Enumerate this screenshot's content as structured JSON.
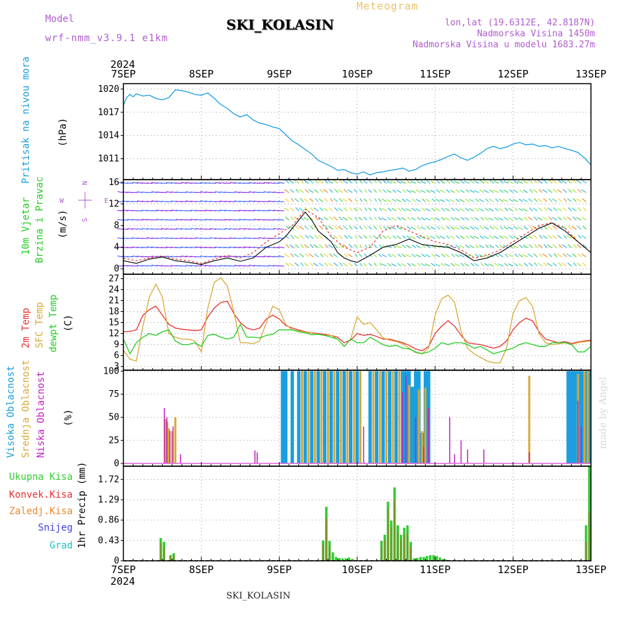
{
  "header": {
    "model_label": "Model",
    "model_name": "wrf-nmm_v3.9.1 e1km",
    "title": "SKI_KOLASIN",
    "meteogram_label": "Meteogram",
    "lonlat": "lon,lat (19.6312E, 42.8187N)",
    "altitude": "Nadmorska Visina 1450m",
    "model_altitude": "Nadmorska Visina u modelu 1683.27m",
    "year_top": "2024",
    "year_bottom": "2024",
    "station_footer": "SKI_KOLASIN",
    "made_by": "made by Angel"
  },
  "colors": {
    "pressure": "#1a9ee0",
    "wind": "#22cc22",
    "t2m": "#e83030",
    "sfc": "#d8a838",
    "dewpt": "#22cc22",
    "high_cloud": "#1a9ee0",
    "mid_cloud": "#d8a838",
    "low_cloud": "#c020c0",
    "total_precip": "#33cc33",
    "conv_precip": "#e83030",
    "frozen_precip": "#e88830",
    "snow": "#4040e0",
    "hail": "#20c0c0",
    "grid": "#999999"
  },
  "chart_data": [
    {
      "type": "line",
      "panel": "pressure",
      "ylabel": "Pritisak na nivou mora",
      "unit": "(hPa)",
      "x_ticks": [
        "7SEP",
        "8SEP",
        "9SEP",
        "10SEP",
        "11SEP",
        "12SEP",
        "13SEP"
      ],
      "y_ticks": [
        1011,
        1014,
        1017,
        1020
      ],
      "ylim": [
        1008.3,
        1020.7
      ],
      "xlim": [
        0,
        144
      ],
      "x": [
        0,
        1,
        2,
        3,
        4,
        6,
        8,
        10,
        12,
        14,
        16,
        18,
        20,
        22,
        24,
        26,
        28,
        30,
        32,
        34,
        36,
        38,
        40,
        42,
        44,
        46,
        48,
        50,
        52,
        54,
        56,
        58,
        60,
        62,
        64,
        66,
        68,
        70,
        72,
        74,
        76,
        78,
        80,
        82,
        84,
        86,
        88,
        90,
        92,
        94,
        96,
        98,
        100,
        102,
        104,
        106,
        108,
        110,
        112,
        114,
        116,
        118,
        120,
        122,
        124,
        126,
        128,
        130,
        132,
        134,
        136,
        138,
        140,
        142,
        144
      ],
      "y": [
        1017.9,
        1018.9,
        1019.3,
        1019.0,
        1019.4,
        1019.1,
        1019.2,
        1018.8,
        1018.6,
        1018.9,
        1019.9,
        1019.8,
        1019.6,
        1019.3,
        1019.2,
        1019.5,
        1018.8,
        1018.0,
        1017.5,
        1016.8,
        1016.4,
        1016.7,
        1016.0,
        1015.6,
        1015.4,
        1015.1,
        1014.9,
        1014.1,
        1013.3,
        1012.8,
        1012.2,
        1011.6,
        1010.8,
        1010.4,
        1010.0,
        1009.5,
        1009.6,
        1009.2,
        1009.0,
        1009.3,
        1008.9,
        1009.2,
        1009.3,
        1009.5,
        1009.6,
        1009.8,
        1009.4,
        1009.6,
        1010.1,
        1010.4,
        1010.6,
        1010.9,
        1011.3,
        1011.6,
        1011.1,
        1010.8,
        1011.2,
        1011.7,
        1012.3,
        1012.6,
        1012.3,
        1012.5,
        1012.9,
        1013.1,
        1012.8,
        1012.9,
        1012.6,
        1012.7,
        1012.4,
        1012.6,
        1012.3,
        1012.1,
        1011.8,
        1011.1,
        1010.2
      ]
    },
    {
      "type": "line",
      "panel": "wind",
      "ylabel": "10m Vjetar Brzina i Pravac",
      "unit": "(m/s)",
      "compass": [
        "N",
        "E",
        "S",
        "W"
      ],
      "y_ticks": [
        0,
        4,
        8,
        12,
        16
      ],
      "ylim": [
        -1,
        16.5
      ],
      "xlim": [
        0,
        144
      ],
      "series": [
        {
          "name": "speed",
          "x": [
            0,
            4,
            8,
            12,
            16,
            20,
            24,
            28,
            32,
            36,
            40,
            44,
            48,
            50,
            52,
            54,
            56,
            58,
            60,
            62,
            64,
            66,
            68,
            70,
            72,
            76,
            80,
            84,
            88,
            90,
            92,
            96,
            100,
            104,
            108,
            112,
            116,
            120,
            124,
            128,
            132,
            136,
            140,
            144
          ],
          "y": [
            1.5,
            1.0,
            1.8,
            2.2,
            1.5,
            1.2,
            0.8,
            1.5,
            2.0,
            1.4,
            2.0,
            4.0,
            5.0,
            6.0,
            7.5,
            9.0,
            10.5,
            9.0,
            7.0,
            6.0,
            5.0,
            3.0,
            2.0,
            1.5,
            1.2,
            2.5,
            4.0,
            4.5,
            5.5,
            5.0,
            4.5,
            4.2,
            4.0,
            3.0,
            1.5,
            2.0,
            3.0,
            4.5,
            6.0,
            7.5,
            8.5,
            7.0,
            5.0,
            3.0
          ]
        },
        {
          "name": "gust",
          "x": [
            0,
            4,
            8,
            12,
            16,
            20,
            24,
            28,
            32,
            36,
            40,
            44,
            48,
            52,
            56,
            60,
            64,
            68,
            72,
            76,
            80,
            84,
            88,
            92,
            96,
            100,
            104,
            108,
            112,
            116,
            120,
            124,
            128,
            132,
            136,
            140,
            144
          ],
          "y": [
            2.0,
            1.5,
            2.0,
            2.4,
            1.8,
            1.5,
            1.0,
            1.8,
            2.5,
            2.0,
            3.0,
            5.0,
            6.5,
            8.0,
            11.0,
            9.5,
            6.0,
            4.0,
            3.0,
            4.0,
            7.0,
            8.0,
            7.0,
            6.0,
            5.0,
            4.5,
            3.5,
            2.0,
            2.5,
            3.5,
            5.0,
            6.5,
            8.0,
            8.5,
            7.5,
            5.0,
            3.0
          ]
        }
      ]
    },
    {
      "type": "line",
      "panel": "temperature",
      "ylabels": [
        "2m Temp",
        "SFC Temp",
        "dewpt Temp"
      ],
      "unit": "(C)",
      "y_ticks": [
        3,
        6,
        9,
        12,
        15,
        18,
        21,
        24,
        27
      ],
      "ylim": [
        2,
        28.2
      ],
      "xlim": [
        0,
        144
      ],
      "x": [
        0,
        2,
        4,
        6,
        8,
        10,
        12,
        14,
        16,
        18,
        20,
        22,
        24,
        26,
        28,
        30,
        32,
        34,
        36,
        38,
        40,
        42,
        44,
        46,
        48,
        50,
        52,
        54,
        56,
        58,
        60,
        62,
        64,
        66,
        68,
        70,
        72,
        74,
        76,
        78,
        80,
        82,
        84,
        86,
        88,
        90,
        92,
        94,
        96,
        98,
        100,
        102,
        104,
        106,
        108,
        110,
        112,
        114,
        116,
        118,
        120,
        122,
        124,
        126,
        128,
        130,
        132,
        134,
        136,
        138,
        140,
        142,
        144
      ],
      "series": [
        {
          "name": "2m Temp",
          "y": [
            12.5,
            12.6,
            13.0,
            17.0,
            18.5,
            19.5,
            17.0,
            14.5,
            13.5,
            13.2,
            13.0,
            12.8,
            13.0,
            16.5,
            19.0,
            20.5,
            20.8,
            17.5,
            15.0,
            13.5,
            13.0,
            13.5,
            16.0,
            17.0,
            16.0,
            14.2,
            13.5,
            13.0,
            12.5,
            12.2,
            12.0,
            11.8,
            11.5,
            11.0,
            9.5,
            10.2,
            12.0,
            11.5,
            11.8,
            11.2,
            10.5,
            10.5,
            10.0,
            9.5,
            8.8,
            7.8,
            7.3,
            8.5,
            12.0,
            14.0,
            15.5,
            14.0,
            11.5,
            9.5,
            9.2,
            9.0,
            8.5,
            8.0,
            8.5,
            10.0,
            13.0,
            15.0,
            16.2,
            15.5,
            12.5,
            10.5,
            10.0,
            9.5,
            9.8,
            9.3,
            9.7,
            10.0,
            10.2
          ]
        },
        {
          "name": "SFC Temp",
          "y": [
            7.5,
            5.0,
            4.5,
            14.0,
            22.0,
            25.5,
            22.0,
            12.0,
            11.0,
            10.5,
            10.5,
            10.0,
            7.0,
            19.0,
            26.0,
            27.2,
            25.0,
            18.0,
            9.5,
            9.5,
            9.2,
            10.0,
            15.0,
            19.5,
            18.5,
            14.5,
            13.0,
            12.7,
            12.4,
            12.1,
            11.8,
            11.5,
            11.5,
            10.5,
            8.5,
            10.5,
            16.5,
            14.5,
            15.0,
            13.0,
            10.8,
            10.2,
            9.8,
            9.2,
            8.0,
            6.8,
            6.5,
            8.0,
            17.0,
            21.5,
            22.5,
            20.5,
            12.5,
            8.0,
            6.5,
            5.5,
            4.5,
            4.0,
            4.0,
            8.0,
            17.5,
            21.0,
            21.8,
            19.5,
            12.0,
            9.5,
            9.0,
            9.2,
            9.5,
            9.0,
            9.5,
            9.8,
            10.0
          ]
        },
        {
          "name": "dewpt Temp",
          "y": [
            10.5,
            6.5,
            9.5,
            11.0,
            12.0,
            11.5,
            12.5,
            13.0,
            10.0,
            9.0,
            9.0,
            9.5,
            8.5,
            11.5,
            11.8,
            11.0,
            10.5,
            11.0,
            14.5,
            11.0,
            11.0,
            10.8,
            11.5,
            11.8,
            13.0,
            13.0,
            13.0,
            12.5,
            12.2,
            11.7,
            11.8,
            11.5,
            11.0,
            10.5,
            8.5,
            10.5,
            9.5,
            9.5,
            11.0,
            10.0,
            9.0,
            8.5,
            8.8,
            8.0,
            7.8,
            7.0,
            6.5,
            7.0,
            8.0,
            9.5,
            9.0,
            9.5,
            9.5,
            9.0,
            8.0,
            8.5,
            7.5,
            6.5,
            7.0,
            7.5,
            8.0,
            9.0,
            9.5,
            9.0,
            8.5,
            8.5,
            9.5,
            9.5,
            9.5,
            9.0,
            7.0,
            7.0,
            8.5
          ]
        }
      ]
    },
    {
      "type": "bar",
      "panel": "cloud",
      "ylabels": [
        "Visoka Oblacnost",
        "Srednja Oblacnost",
        "Niska Oblacnost"
      ],
      "unit": "(%)",
      "y_ticks": [
        0,
        25,
        50,
        75,
        100
      ],
      "ylim": [
        -3,
        101
      ],
      "xlim": [
        0,
        144
      ],
      "high": {
        "x": [
          49,
          49.5,
          50,
          52,
          54,
          56,
          58,
          60,
          62,
          64,
          66,
          68,
          70,
          72,
          76,
          78,
          80,
          82,
          84,
          86,
          87,
          88,
          89,
          90,
          91,
          92,
          93,
          94,
          137,
          138,
          139,
          140,
          141,
          142,
          143,
          143.6
        ],
        "y": [
          100,
          100,
          100,
          100,
          100,
          100,
          100,
          100,
          100,
          100,
          100,
          100,
          100,
          100,
          100,
          100,
          100,
          100,
          100,
          100,
          100,
          100,
          83,
          100,
          100,
          33,
          100,
          100,
          100,
          100,
          100,
          100,
          100,
          100,
          100,
          100
        ]
      },
      "mid": {
        "x": [
          13,
          13.5,
          14,
          15,
          16,
          55,
          57,
          59,
          61,
          63,
          65,
          67,
          69,
          71,
          73,
          77,
          79,
          81,
          83,
          85,
          88,
          91,
          92,
          93,
          125,
          140,
          142,
          143
        ],
        "y": [
          48,
          45,
          38,
          35,
          50,
          100,
          100,
          100,
          100,
          100,
          100,
          100,
          100,
          100,
          100,
          100,
          100,
          100,
          100,
          100,
          85,
          80,
          35,
          82,
          95,
          97,
          100,
          100
        ]
      },
      "low": {
        "x": [
          12.6,
          13.4,
          14.3,
          15.3,
          17.6,
          40.5,
          41.2,
          74,
          86,
          87,
          90,
          92.5,
          94,
          100.5,
          102,
          104,
          106,
          111,
          125,
          140,
          141
        ],
        "y": [
          60,
          50,
          35,
          40,
          10,
          14,
          12,
          40,
          77,
          95,
          50,
          18,
          60,
          50,
          10,
          25,
          15,
          15,
          12,
          68,
          40
        ]
      }
    },
    {
      "type": "bar",
      "panel": "precip",
      "ylabels": [
        "Ukupna Kisa",
        "Konvek.Kisa",
        "Zaledj.Kisa",
        "Snijeg",
        "Grad"
      ],
      "unit": "1hr Precip (mm)",
      "y_ticks": [
        0,
        0.43,
        0.86,
        1.29,
        1.72
      ],
      "ylim": [
        0,
        2.0
      ],
      "xlim": [
        0,
        144
      ],
      "x_ticks": [
        "7SEP",
        "8SEP",
        "9SEP",
        "10SEP",
        "11SEP",
        "12SEP",
        "13SEP"
      ],
      "total": {
        "x": [
          11.5,
          12.5,
          14.5,
          15.5,
          61.5,
          62.5,
          63.5,
          64.5,
          65.5,
          66.5,
          67.5,
          68.5,
          69.5,
          70.5,
          79.5,
          80.5,
          81.5,
          82.5,
          83.5,
          84.5,
          85.5,
          86.5,
          87.5,
          88.5,
          89.5,
          90.5,
          91.5,
          92.5,
          93.5,
          94.5,
          95.5,
          96.5,
          97.5,
          98.5,
          99.5,
          142.5,
          143.5
        ],
        "y": [
          0.48,
          0.4,
          0.12,
          0.16,
          0.43,
          1.14,
          0.42,
          0.18,
          0.08,
          0.06,
          0.05,
          0.05,
          0.07,
          0.04,
          0.42,
          0.55,
          1.25,
          0.85,
          1.55,
          0.75,
          0.55,
          0.7,
          0.75,
          0.4,
          0.05,
          0.06,
          0.08,
          0.08,
          0.1,
          0.12,
          0.12,
          0.1,
          0.07,
          0.04,
          0.02,
          0.75,
          2.0
        ]
      },
      "conv": {
        "x": [
          11.5,
          12.5,
          14.5,
          15.5,
          61.5,
          62.5,
          63.5,
          79.5,
          80.5,
          81.5,
          82.5,
          83.5,
          84.5,
          85.5,
          86.5,
          87.5,
          88.5,
          142.5,
          143.5
        ],
        "y": [
          0.38,
          0.3,
          0.1,
          0.12,
          0.35,
          0.9,
          0.3,
          0.3,
          0.45,
          1.1,
          0.7,
          1.3,
          0.6,
          0.45,
          0.55,
          0.6,
          0.3,
          0.4,
          1.05
        ]
      }
    }
  ]
}
